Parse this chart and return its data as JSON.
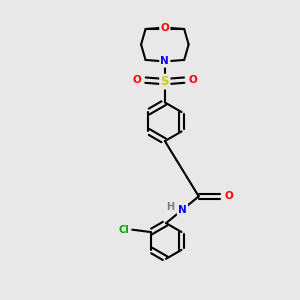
{
  "bg_color": "#e8e8e8",
  "bond_color": "#000000",
  "atom_colors": {
    "O": "#ff0000",
    "N": "#0000ff",
    "S": "#cccc00",
    "Cl": "#00aa00",
    "C": "#000000",
    "H": "#808080"
  },
  "bond_width": 1.5,
  "dbl_sep": 0.09
}
